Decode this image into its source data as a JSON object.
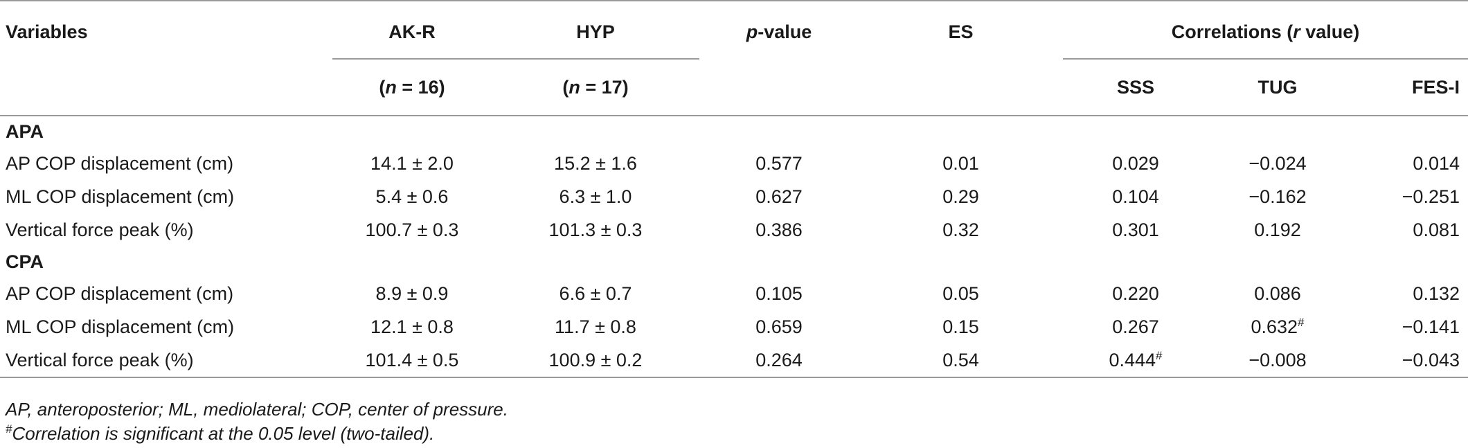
{
  "header": {
    "variables": "Variables",
    "akr": "AK-R",
    "hyp": "HYP",
    "p_italic": "p",
    "p_rest": "-value",
    "es": "ES",
    "corr_pre": "Correlations (",
    "corr_r": "r",
    "corr_post": " value)",
    "akr_n": "n",
    "akr_n_val": " = 16)",
    "hyp_n_val": " = 17)",
    "open_paren": "(",
    "sss": "SSS",
    "tug": "TUG",
    "fesi": "FES-I"
  },
  "sections": [
    {
      "label": "APA",
      "rows": [
        {
          "variable": "AP COP displacement (cm)",
          "akr": "14.1 ± 2.0",
          "hyp": "15.2 ± 1.6",
          "p": "0.577",
          "es": "0.01",
          "sss": "0.029",
          "sss_sig": "",
          "tug": "−0.024",
          "tug_sig": "",
          "fesi": "0.014"
        },
        {
          "variable": "ML COP displacement (cm)",
          "akr": "5.4 ± 0.6",
          "hyp": "6.3 ± 1.0",
          "p": "0.627",
          "es": "0.29",
          "sss": "0.104",
          "sss_sig": "",
          "tug": "−0.162",
          "tug_sig": "",
          "fesi": "−0.251"
        },
        {
          "variable": "Vertical force peak (%)",
          "akr": "100.7 ± 0.3",
          "hyp": "101.3 ± 0.3",
          "p": "0.386",
          "es": "0.32",
          "sss": "0.301",
          "sss_sig": "",
          "tug": "0.192",
          "tug_sig": "",
          "fesi": "0.081"
        }
      ]
    },
    {
      "label": "CPA",
      "rows": [
        {
          "variable": "AP COP displacement (cm)",
          "akr": "8.9 ± 0.9",
          "hyp": "6.6 ± 0.7",
          "p": "0.105",
          "es": "0.05",
          "sss": "0.220",
          "sss_sig": "",
          "tug": "0.086",
          "tug_sig": "",
          "fesi": "0.132"
        },
        {
          "variable": "ML COP displacement (cm)",
          "akr": "12.1 ± 0.8",
          "hyp": "11.7 ± 0.8",
          "p": "0.659",
          "es": "0.15",
          "sss": "0.267",
          "sss_sig": "",
          "tug": "0.632",
          "tug_sig": "#",
          "fesi": "−0.141"
        },
        {
          "variable": "Vertical force peak (%)",
          "akr": "101.4 ± 0.5",
          "hyp": "100.9 ± 0.2",
          "p": "0.264",
          "es": "0.54",
          "sss": "0.444",
          "sss_sig": "#",
          "tug": "−0.008",
          "tug_sig": "",
          "fesi": "−0.043"
        }
      ]
    }
  ],
  "footnotes": {
    "abbrev": "AP, anteroposterior; ML, mediolateral; COP, center of pressure.",
    "sig_mark": "#",
    "sig_text": "Correlation is significant at the 0.05 level (two-tailed)."
  }
}
